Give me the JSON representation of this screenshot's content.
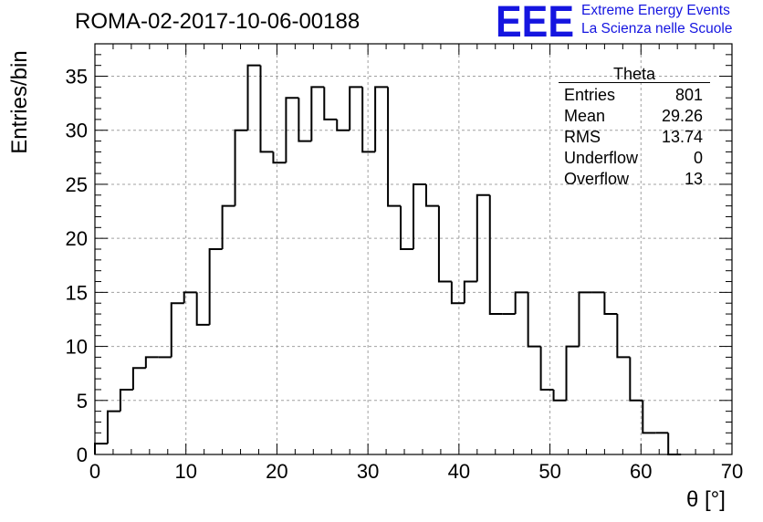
{
  "header": {
    "run_title": "ROMA-02-2017-10-06-00188",
    "logo_letters": "EEE",
    "logo_line1": "Extreme Energy Events",
    "logo_line2": "La Scienza nelle Scuole"
  },
  "stats_box": {
    "name": "Theta",
    "rows": [
      {
        "label": "Entries",
        "value": "801"
      },
      {
        "label": "Mean",
        "value": "29.26"
      },
      {
        "label": "RMS",
        "value": "13.74"
      },
      {
        "label": "Underflow",
        "value": "0"
      },
      {
        "label": "Overflow",
        "value": "13"
      }
    ]
  },
  "chart_data": {
    "type": "bar",
    "style": "step-histogram",
    "title": "ROMA-02-2017-10-06-00188",
    "xlabel": "θ [°]",
    "ylabel": "Entries/bin",
    "xlim": [
      0,
      70
    ],
    "ylim": [
      0,
      38
    ],
    "grid": true,
    "bin_width": 1.4,
    "bin_edges_start": 0,
    "values": [
      1,
      4,
      6,
      8,
      9,
      9,
      14,
      15,
      12,
      19,
      23,
      30,
      36,
      28,
      27,
      33,
      29,
      34,
      31,
      30,
      34,
      28,
      34,
      23,
      19,
      25,
      23,
      16,
      14,
      16,
      24,
      13,
      13,
      15,
      10,
      6,
      5,
      10,
      15,
      15,
      13,
      9,
      5,
      2,
      2,
      0,
      0,
      0,
      0,
      0
    ],
    "x_ticks": [
      "0",
      "10",
      "20",
      "30",
      "40",
      "50",
      "60",
      "70"
    ],
    "x_tick_values": [
      0,
      10,
      20,
      30,
      40,
      50,
      60,
      70
    ],
    "y_ticks": [
      "0",
      "5",
      "10",
      "15",
      "20",
      "25",
      "30",
      "35"
    ],
    "y_tick_values": [
      0,
      5,
      10,
      15,
      20,
      25,
      30,
      35
    ],
    "line_color": "#000000",
    "grid_color": "#a0a0a0",
    "logo_color": "#1515e0"
  }
}
